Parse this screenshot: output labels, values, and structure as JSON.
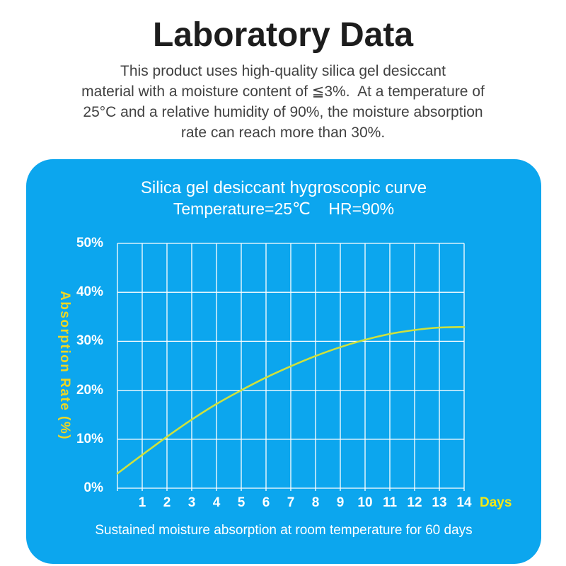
{
  "header": {
    "title": "Laboratory Data",
    "description_lines": [
      "This product uses high-quality silica gel desiccant",
      "material with a moisture content of ≦3%.  At a temperature of",
      "25°C and a relative humidity of 90%, the moisture absorption",
      "rate can reach more than 30%."
    ]
  },
  "card": {
    "background_color": "#0ca6ee",
    "title": "Silica gel desiccant hygroscopic curve",
    "subtitle": "Temperature=25℃    HR=90%",
    "caption": "Sustained moisture absorption at room temperature for 60 days"
  },
  "chart_data": {
    "type": "line",
    "title": "Silica gel desiccant hygroscopic curve",
    "subtitle": "Temperature=25℃  HR=90%",
    "xlabel": "Days",
    "ylabel": "Absorption Rate (%)",
    "x": [
      0,
      1,
      2,
      3,
      4,
      5,
      6,
      7,
      8,
      9,
      10,
      11,
      12,
      13,
      14
    ],
    "series": [
      {
        "name": "absorption_rate_percent",
        "values": [
          3.0,
          6.8,
          10.5,
          14.0,
          17.2,
          20.0,
          22.6,
          24.9,
          27.0,
          28.8,
          30.3,
          31.5,
          32.3,
          32.8,
          32.9
        ]
      }
    ],
    "xlim": [
      0,
      14
    ],
    "ylim": [
      0,
      50
    ],
    "xtick_labels": [
      "1",
      "2",
      "3",
      "4",
      "5",
      "6",
      "7",
      "8",
      "9",
      "10",
      "11",
      "12",
      "13",
      "14"
    ],
    "ytick_values": [
      0,
      10,
      20,
      30,
      40,
      50
    ],
    "ytick_labels": [
      "0%",
      "10%",
      "20%",
      "30%",
      "40%",
      "50%"
    ],
    "grid": true,
    "legend": "none",
    "colors": {
      "grid": "#ffffff",
      "curve": "#cfe13c",
      "ylabel": "#eed724",
      "xlabel_days": "#f6e814",
      "tick_text": "#ffffff"
    }
  }
}
